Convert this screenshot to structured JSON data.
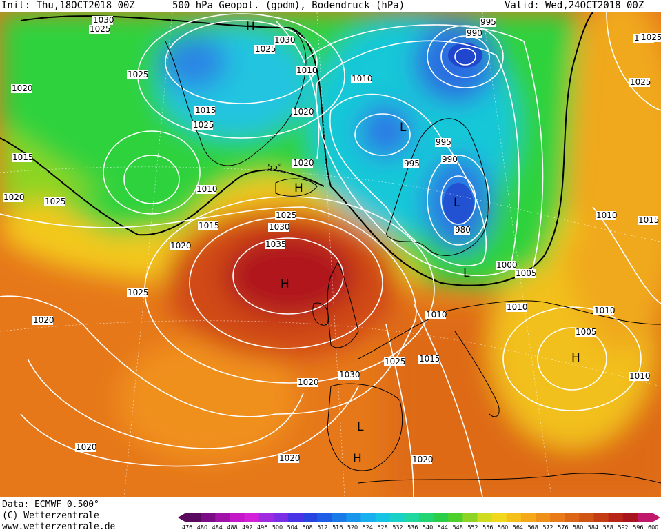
{
  "header": {
    "init": "Init: Thu,18OCT2018 00Z",
    "title": "500 hPa Geopot. (gpdm), Bodendruck (hPa)",
    "valid": "Valid: Wed,24OCT2018 00Z"
  },
  "footer": {
    "data": "Data: ECMWF  0.500°",
    "copyright": "(C) Wetterzentrale",
    "url": "www.wetterzentrale.de"
  },
  "colors": {
    "high": "#b0141c",
    "orange": "#e87a1a",
    "yellow": "#f3d01a",
    "green": "#2ad03c",
    "cyan": "#18c4dc",
    "blue": "#2c7ae0",
    "deepblue": "#1e3cc8"
  },
  "map": {
    "systems": [
      {
        "id": "h-iceland",
        "label": "H"
      },
      {
        "id": "h-atlantic",
        "label": "H"
      },
      {
        "id": "h-greenland",
        "label": "H"
      },
      {
        "id": "h-balkan",
        "label": "H"
      },
      {
        "id": "h-iberia",
        "label": "H"
      },
      {
        "id": "l-norway",
        "label": "L"
      },
      {
        "id": "l-baltic",
        "label": "L"
      },
      {
        "id": "l-poland",
        "label": "L"
      },
      {
        "id": "l-iberia",
        "label": "L"
      },
      {
        "id": "l-north",
        "label": "L"
      }
    ],
    "isobar_labels": [
      "1030",
      "1025",
      "1025",
      "1030",
      "1025",
      "1020",
      "1015",
      "1025",
      "1020",
      "1010",
      "1015",
      "1020",
      "1025",
      "995",
      "990",
      "1030",
      "1025",
      "1010",
      "995",
      "995",
      "990",
      "980",
      "1020",
      "1025",
      "1030",
      "1035",
      "1010",
      "1015",
      "1010",
      "1000",
      "1005",
      "1025",
      "1020",
      "1025",
      "1020",
      "1020",
      "1010",
      "1005",
      "1010",
      "1025",
      "1015",
      "1030",
      "1025",
      "1020",
      "1020",
      "1020",
      "1010",
      "1015",
      "1010"
    ],
    "lat_label": "55°"
  },
  "colorbar": {
    "ticks": [
      "476",
      "480",
      "484",
      "488",
      "492",
      "496",
      "500",
      "504",
      "508",
      "512",
      "516",
      "520",
      "524",
      "528",
      "532",
      "536",
      "540",
      "544",
      "548",
      "552",
      "556",
      "560",
      "564",
      "568",
      "572",
      "576",
      "580",
      "584",
      "588",
      "592",
      "596",
      "600"
    ],
    "colors": [
      "#5a0a5e",
      "#7a0c86",
      "#a012a8",
      "#c418c8",
      "#d420d8",
      "#a02ae0",
      "#7a2ee6",
      "#4a32e6",
      "#2844e0",
      "#1e5ee6",
      "#1a7ae8",
      "#1896ec",
      "#18b0ee",
      "#18c4e4",
      "#18d2c8",
      "#1ed8a0",
      "#22d472",
      "#2ace48",
      "#4ed02c",
      "#8ed424",
      "#d0dc20",
      "#f2d81a",
      "#f6c01a",
      "#f4a81a",
      "#ef9018",
      "#e87a18",
      "#dc6616",
      "#d05414",
      "#c43c14",
      "#b82418",
      "#a8141e",
      "#c0186a"
    ]
  }
}
